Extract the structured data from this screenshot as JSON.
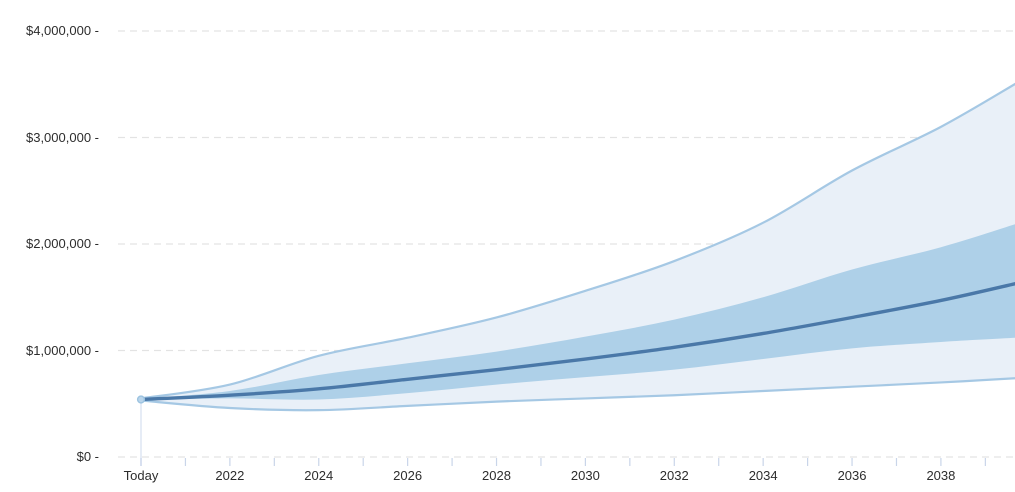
{
  "chart_data": {
    "type": "area",
    "subtype": "fan-projection-band-chart",
    "title": "",
    "xlabel": "",
    "ylabel": "",
    "legend": "none",
    "grid": "horizontal-dashed",
    "ylim": [
      0,
      4200000
    ],
    "x_range_years": [
      2020,
      2039.7
    ],
    "y_ticks": [
      {
        "value": 0,
        "label": "$0 -"
      },
      {
        "value": 1000000,
        "label": "$1,000,000 -"
      },
      {
        "value": 2000000,
        "label": "$2,000,000 -"
      },
      {
        "value": 3000000,
        "label": "$3,000,000 -"
      },
      {
        "value": 4000000,
        "label": "$4,000,000 -"
      }
    ],
    "x_ticks": [
      {
        "year": 2020,
        "label": "Today"
      },
      {
        "year": 2022,
        "label": "2022"
      },
      {
        "year": 2024,
        "label": "2024"
      },
      {
        "year": 2026,
        "label": "2026"
      },
      {
        "year": 2028,
        "label": "2028"
      },
      {
        "year": 2030,
        "label": "2030"
      },
      {
        "year": 2032,
        "label": "2032"
      },
      {
        "year": 2034,
        "label": "2034"
      },
      {
        "year": 2036,
        "label": "2036"
      },
      {
        "year": 2038,
        "label": "2038"
      }
    ],
    "minor_tick_years": [
      2020,
      2021,
      2022,
      2023,
      2024,
      2025,
      2026,
      2027,
      2028,
      2029,
      2030,
      2031,
      2032,
      2033,
      2034,
      2035,
      2036,
      2037,
      2038,
      2039
    ],
    "x": [
      2020,
      2022,
      2024,
      2026,
      2028,
      2030,
      2032,
      2034,
      2036,
      2038,
      2039.7
    ],
    "series": [
      {
        "name": "outer_band_top",
        "values": [
          550000,
          680000,
          950000,
          1120000,
          1310000,
          1560000,
          1840000,
          2200000,
          2690000,
          3100000,
          3510000
        ]
      },
      {
        "name": "inner_band_top",
        "values": [
          545000,
          620000,
          770000,
          880000,
          990000,
          1130000,
          1290000,
          1500000,
          1760000,
          1970000,
          2190000
        ]
      },
      {
        "name": "median",
        "values": [
          540000,
          580000,
          640000,
          730000,
          820000,
          920000,
          1030000,
          1160000,
          1310000,
          1470000,
          1630000
        ]
      },
      {
        "name": "inner_band_bottom",
        "values": [
          535000,
          550000,
          540000,
          600000,
          680000,
          750000,
          820000,
          920000,
          1020000,
          1080000,
          1120000
        ]
      },
      {
        "name": "outer_band_bottom",
        "values": [
          530000,
          460000,
          440000,
          480000,
          520000,
          550000,
          580000,
          620000,
          660000,
          700000,
          740000
        ]
      }
    ],
    "start_point": {
      "x_label": "Today",
      "value": 540000
    },
    "colors": {
      "outer_band_fill": "#e9f0f8",
      "outer_band_stroke": "#a5c8e4",
      "inner_band_fill": "#aed0e8",
      "median_line": "#4a78a8",
      "gridline": "#e3e3e3",
      "axis_tick": "#c9d5e9",
      "today_line": "#dde5f3",
      "label_text": "#2d2d2d",
      "start_dot_fill": "#bad5eb",
      "start_dot_stroke": "#9cc3e0"
    }
  }
}
